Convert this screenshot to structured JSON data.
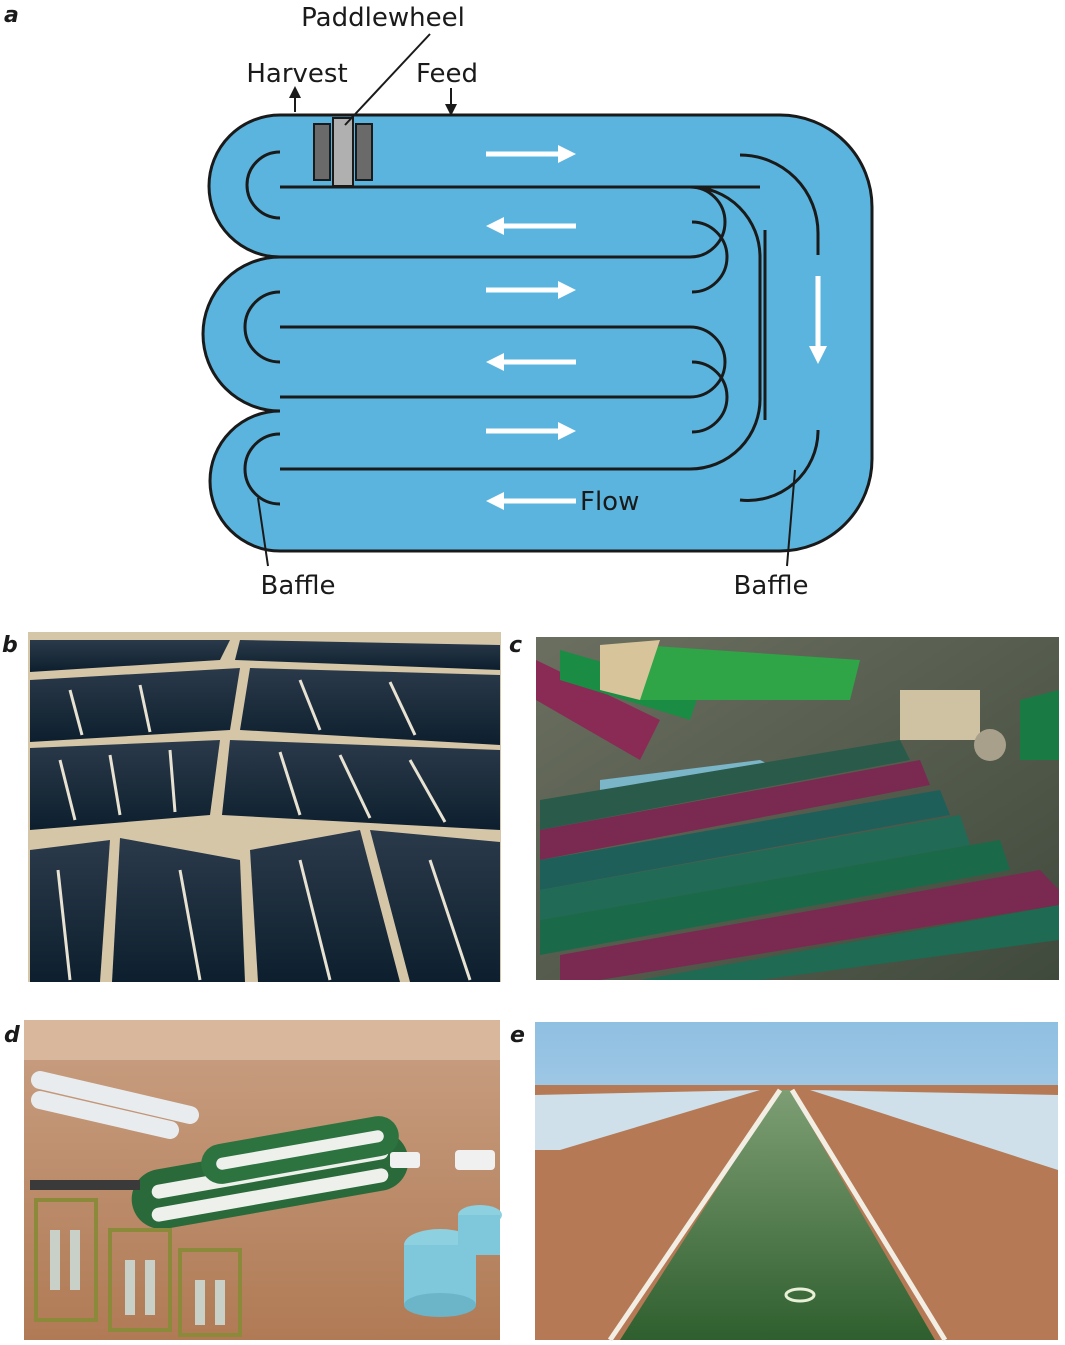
{
  "panels": {
    "a": "a",
    "b": "b",
    "c": "c",
    "d": "d",
    "e": "e"
  },
  "diagram": {
    "paddlewheel": "Paddlewheel",
    "harvest": "Harvest",
    "feed": "Feed",
    "flow": "Flow",
    "baffle_left": "Baffle",
    "baffle_right": "Baffle"
  },
  "colors": {
    "water": "#5ab4dd",
    "outline": "#1a1a1a",
    "paddle_dark": "#6a6a6a",
    "paddle_light": "#b0b0b0",
    "arrow": "#ffffff"
  }
}
